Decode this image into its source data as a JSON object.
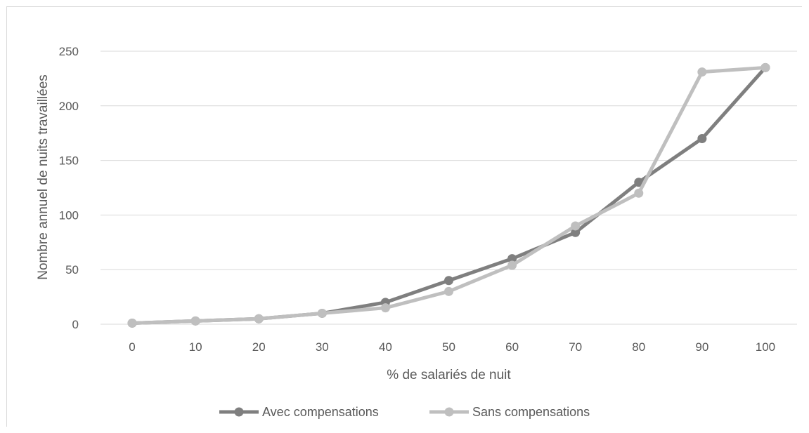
{
  "chart_data": {
    "type": "line",
    "title": "",
    "xlabel": "% de salariés de nuit",
    "ylabel": "Nombre annuel de nuits travaillées",
    "x": [
      0,
      10,
      20,
      30,
      40,
      50,
      60,
      70,
      80,
      90,
      100
    ],
    "x_tick_labels": [
      "0",
      "10",
      "20",
      "30",
      "40",
      "50",
      "60",
      "70",
      "80",
      "90",
      "100"
    ],
    "ylim": [
      0,
      250
    ],
    "y_ticks": [
      0,
      50,
      100,
      150,
      200,
      250
    ],
    "y_tick_labels": [
      "0",
      "50",
      "100",
      "150",
      "200",
      "250"
    ],
    "grid": true,
    "legend_position": "bottom",
    "series": [
      {
        "name": "Avec compensations",
        "color": "#7f7f7f",
        "values": [
          1,
          3,
          5,
          10,
          20,
          40,
          60,
          84,
          130,
          170,
          235
        ]
      },
      {
        "name": "Sans compensations",
        "color": "#bfbfbf",
        "values": [
          1,
          3,
          5,
          10,
          15,
          30,
          54,
          90,
          120,
          231,
          235
        ]
      }
    ]
  }
}
